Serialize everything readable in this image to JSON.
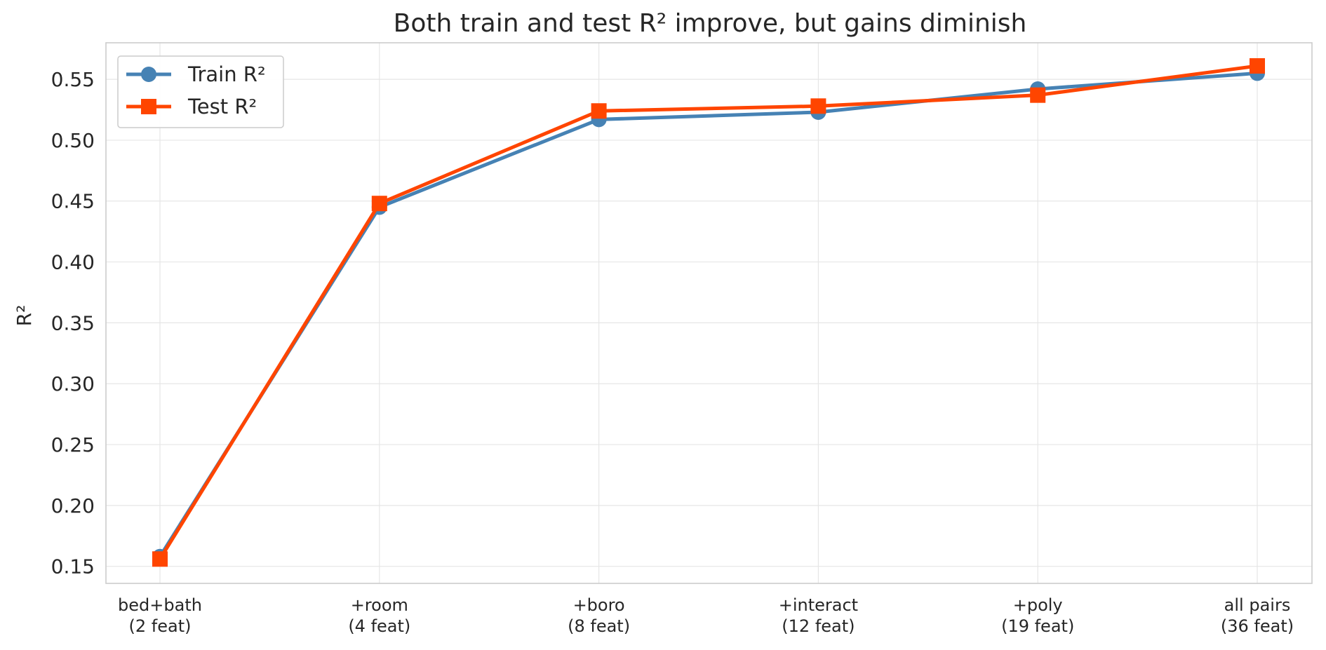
{
  "chart_data": {
    "type": "line",
    "title": "Both train and test R² improve, but gains diminish",
    "xlabel": "",
    "ylabel": "R²",
    "categories": [
      [
        "bed+bath",
        "(2 feat)"
      ],
      [
        "+room",
        "(4 feat)"
      ],
      [
        "+boro",
        "(8 feat)"
      ],
      [
        "+interact",
        "(12 feat)"
      ],
      [
        "+poly",
        "(19 feat)"
      ],
      [
        "all pairs",
        "(36 feat)"
      ]
    ],
    "ylim": [
      0.136,
      0.58
    ],
    "yticks": [
      0.15,
      0.2,
      0.25,
      0.3,
      0.35,
      0.4,
      0.45,
      0.5,
      0.55
    ],
    "ytick_labels": [
      "0.15",
      "0.20",
      "0.25",
      "0.30",
      "0.35",
      "0.40",
      "0.45",
      "0.50",
      "0.55"
    ],
    "grid": true,
    "legend_position": "top-left",
    "series": [
      {
        "name": "Train R²",
        "color": "#4682b4",
        "marker": "circle",
        "values": [
          0.158,
          0.445,
          0.517,
          0.523,
          0.542,
          0.555
        ]
      },
      {
        "name": "Test R²",
        "color": "#ff4500",
        "marker": "square",
        "values": [
          0.156,
          0.448,
          0.524,
          0.528,
          0.537,
          0.561
        ]
      }
    ]
  }
}
